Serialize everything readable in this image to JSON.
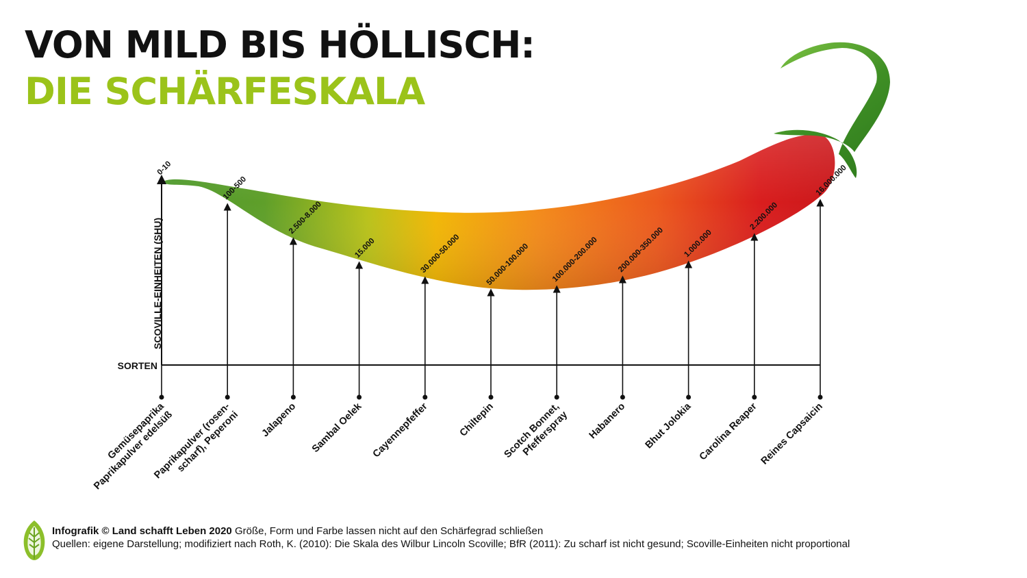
{
  "title_line_1": "VON MILD BIS HÖLLISCH:",
  "title_line_2": "DIE SCHÄRFESKALA",
  "footer": {
    "credit_bold": "Infografik © Land schafft Leben 2020",
    "credit_rest": " Größe, Form und Farbe lassen nicht auf den Schärfegrad schließen",
    "sources": "Quellen: eigene Darstellung; modifiziert nach Roth, K. (2010): Die Skala des Wilbur Lincoln Scoville; BfR (2011): Zu scharf ist nicht gesund; Scoville-Einheiten nicht proportional"
  },
  "colors": {
    "title": "#111111",
    "accent": "#9bc31a",
    "pepper_green": "#5a9e2b",
    "pepper_yellow": "#f2b705",
    "pepper_orange": "#f07a1d",
    "pepper_red": "#d81f1f",
    "stem": "#4a9a2a"
  },
  "chart_data": {
    "type": "bar",
    "ylabel": "SCOVILLE-EINHEITEN (SHU)",
    "xlabel": "SORTEN",
    "categories": [
      [
        "Gemüsepaprika",
        "Paprikapulver edelsüß"
      ],
      [
        "Paprikapulver (rosen-",
        "scharf), Peperoni"
      ],
      [
        "Jalapeno"
      ],
      [
        "Sambal Oelek"
      ],
      [
        "Cayennepfeffer"
      ],
      [
        "Chiltepin"
      ],
      [
        "Scotch Bonnet,",
        "Pfefferspray"
      ],
      [
        "Habanero"
      ],
      [
        "Bhut Jolokia"
      ],
      [
        "Carolina Reaper"
      ],
      [
        "Reines Capsaicin"
      ]
    ],
    "value_labels": [
      "0-10",
      "100-500",
      "2.500-8.000",
      "15.000",
      "30.000-50.000",
      "50.000-100.000",
      "100.000-200.000",
      "200.000-350.000",
      "1.000.000",
      "2.200.000",
      "16.000.000"
    ],
    "note": "Scoville-Einheiten nicht proportional"
  }
}
